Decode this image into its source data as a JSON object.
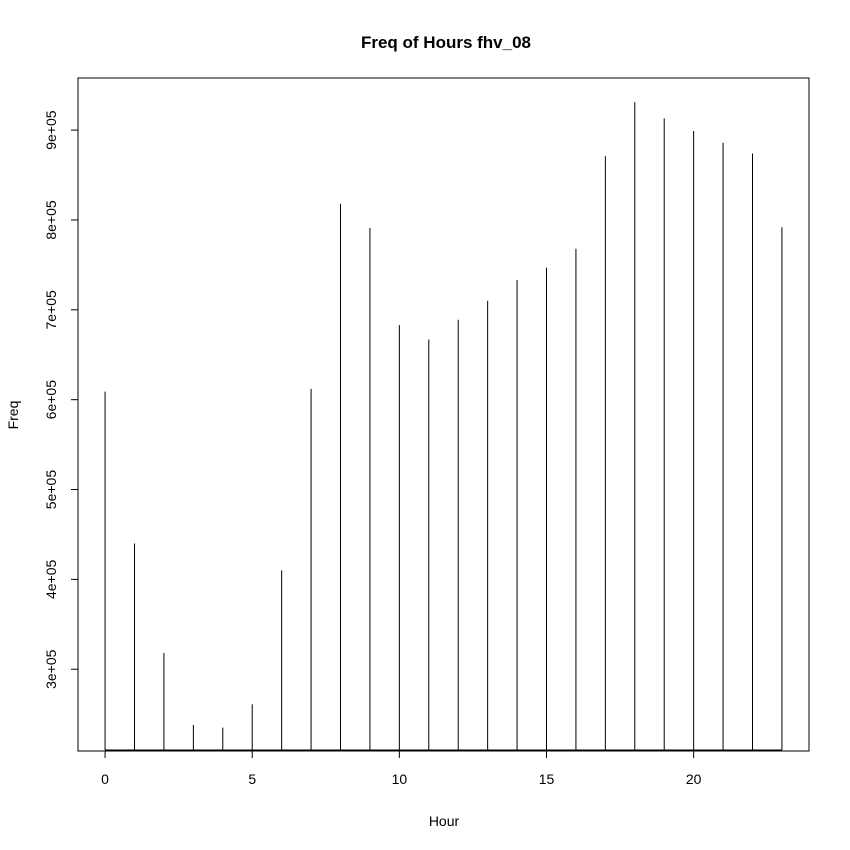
{
  "chart_data": {
    "type": "bar",
    "title": "Freq of Hours fhv_08",
    "xlabel": "Hour",
    "ylabel": "Freq",
    "x": [
      0,
      1,
      2,
      3,
      4,
      5,
      6,
      7,
      8,
      9,
      10,
      11,
      12,
      13,
      14,
      15,
      16,
      17,
      18,
      19,
      20,
      21,
      22,
      23
    ],
    "values": [
      609000,
      440000,
      318000,
      238000,
      235000,
      261000,
      410000,
      612000,
      818000,
      791000,
      683000,
      667000,
      689000,
      710000,
      733000,
      747000,
      768000,
      871000,
      931000,
      913000,
      899000,
      886000,
      874000,
      792000
    ],
    "xlim": [
      -0.92,
      23.92
    ],
    "ylim": [
      209000,
      958000
    ],
    "xticks": [
      0,
      5,
      10,
      15,
      20
    ],
    "xtick_labels": [
      "0",
      "5",
      "10",
      "15",
      "20"
    ],
    "yticks": [
      300000,
      400000,
      500000,
      600000,
      700000,
      800000,
      900000
    ],
    "ytick_labels": [
      "3e+05",
      "4e+05",
      "5e+05",
      "6e+05",
      "7e+05",
      "8e+05",
      "9e+05"
    ],
    "grid": false,
    "colors": {
      "line": "#000000",
      "background": "#ffffff"
    }
  }
}
